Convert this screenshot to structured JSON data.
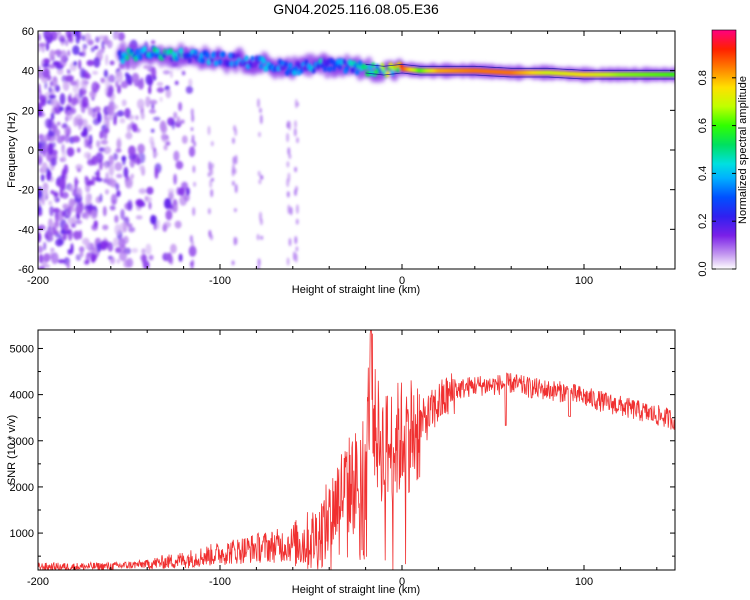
{
  "chart_data": [
    {
      "type": "heatmap",
      "title": "GN04.2025.116.08.05.E36",
      "xlabel": "Height of straight line (km)",
      "ylabel": "Frequency (Hz)",
      "colorbar_label": "Normalized spectral amplitude",
      "xlim": [
        -200,
        150
      ],
      "ylim": [
        -60,
        60
      ],
      "x_ticks": [
        -200,
        -100,
        0,
        100
      ],
      "y_ticks": [
        -60,
        -40,
        -20,
        0,
        20,
        40,
        60
      ],
      "colorbar_ticks": [
        0.0,
        0.2,
        0.4,
        0.6,
        0.8
      ],
      "colorbar_range": [
        0,
        1
      ],
      "colormap": "rainbow (purple -> blue -> cyan -> green -> yellow -> red -> magenta)",
      "ridge": {
        "description": "Doppler trace of spectral peak",
        "x": [
          -155,
          -140,
          -120,
          -100,
          -80,
          -60,
          -45,
          -30,
          -20,
          -10,
          0,
          10,
          20,
          40,
          60,
          80,
          100,
          120,
          150
        ],
        "y": [
          47,
          49,
          48,
          46,
          44,
          41,
          43,
          42,
          41,
          40,
          41,
          40,
          40,
          40,
          39,
          39,
          38,
          38,
          38
        ],
        "amplitude": [
          0.35,
          0.4,
          0.35,
          0.3,
          0.3,
          0.3,
          0.35,
          0.35,
          0.4,
          0.55,
          0.9,
          0.6,
          0.8,
          0.85,
          0.85,
          0.7,
          0.75,
          0.65,
          0.6
        ]
      },
      "noise_region": {
        "x": [
          -200,
          -125
        ],
        "amplitude_range": [
          0.0,
          0.15
        ]
      }
    },
    {
      "type": "line",
      "xlabel": "Height of straight line (km)",
      "ylabel": "SNR (10 * v/v)",
      "xlim": [
        -200,
        150
      ],
      "ylim": [
        200,
        5400
      ],
      "x_ticks": [
        -200,
        -100,
        0,
        100
      ],
      "y_ticks": [
        1000,
        2000,
        3000,
        4000,
        5000
      ],
      "color": "#f03030",
      "series": [
        {
          "x": [
            -200,
            -180,
            -160,
            -140,
            -120,
            -100,
            -80,
            -60,
            -50,
            -45,
            -40,
            -35,
            -30,
            -25,
            -20,
            -17,
            -15,
            -10,
            -5,
            0,
            5,
            10,
            15,
            20,
            25,
            30,
            40,
            50,
            60,
            70,
            80,
            90,
            100,
            110,
            120,
            130,
            140,
            150
          ],
          "y": [
            270,
            270,
            280,
            330,
            420,
            560,
            680,
            760,
            840,
            1000,
            1300,
            1800,
            2000,
            2100,
            2500,
            4600,
            3300,
            2800,
            2900,
            3100,
            3200,
            3350,
            3550,
            3800,
            3950,
            4100,
            4200,
            4200,
            4250,
            4150,
            4100,
            4050,
            3950,
            3850,
            3750,
            3650,
            3550,
            3450
          ]
        }
      ]
    }
  ]
}
